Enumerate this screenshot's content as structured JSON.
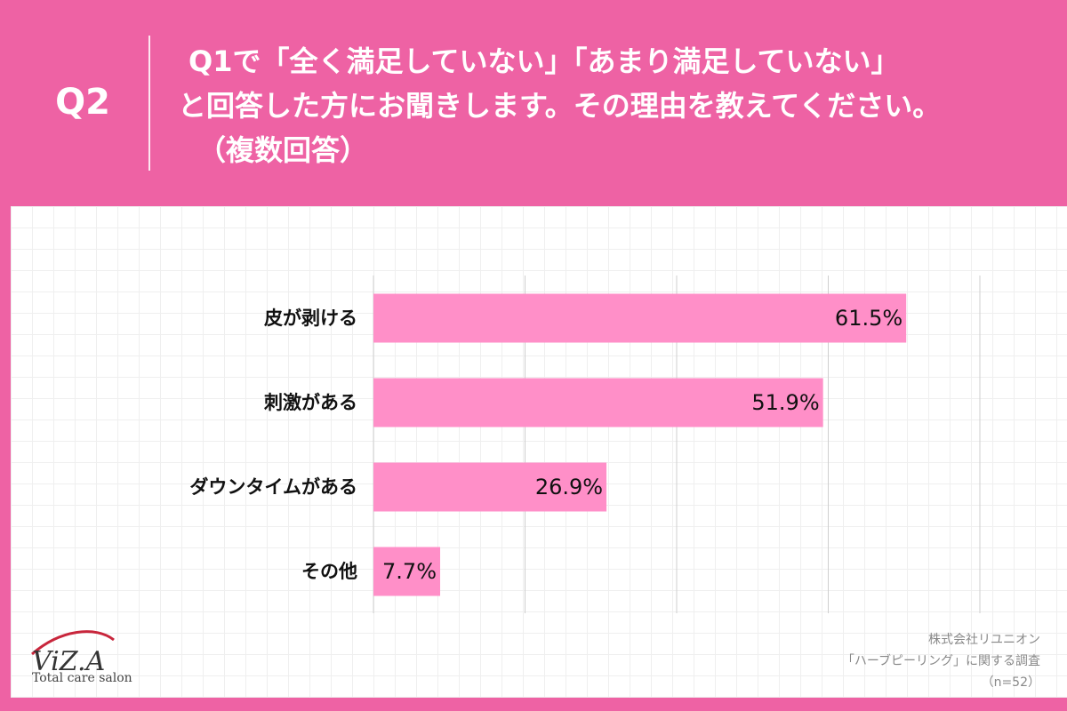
{
  "header": {
    "qnum": "Q2",
    "question_lines": [
      "Q1で「全く満足していない」「あまり満足していない」",
      "と回答した方にお聞きします。その理由を教えてください。",
      "（複数回答）"
    ]
  },
  "chart_data": {
    "type": "bar",
    "orientation": "horizontal",
    "categories": [
      "皮が剥ける",
      "刺激がある",
      "ダウンタイムがある",
      "その他"
    ],
    "values": [
      61.5,
      51.9,
      26.9,
      7.7
    ],
    "value_labels": [
      "61.5%",
      "51.9%",
      "26.9%",
      "7.7%"
    ],
    "xlim": [
      0,
      70
    ],
    "gridlines": [
      0,
      17.5,
      35,
      52.5,
      70
    ],
    "bar_color": "#ff8fc8",
    "grid": true
  },
  "footer": {
    "company": "株式会社リユニオン",
    "survey": "「ハーブピーリング」に関する調査",
    "n": "（n=52）"
  },
  "logo": {
    "brand": "ViZ.A",
    "tagline": "Total care salon"
  },
  "colors": {
    "background": "#ee62a4",
    "bar": "#ff8fc8",
    "logo_red": "#c8263c"
  }
}
